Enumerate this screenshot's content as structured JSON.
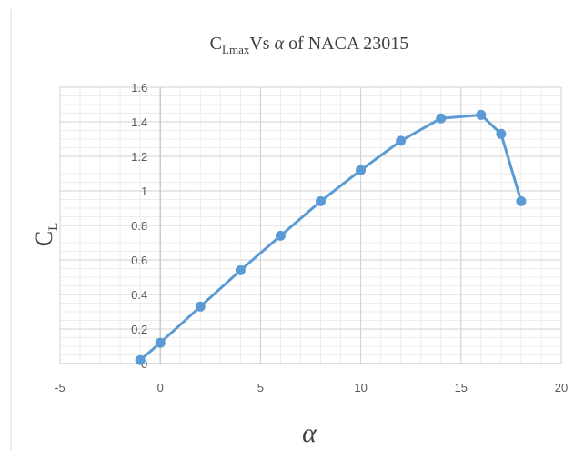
{
  "chart_data": {
    "type": "scatter",
    "mode": "lines+markers",
    "title": {
      "main": "C",
      "sub": "Lmax",
      "rest_prefix": "Vs ",
      "rest_symbol": "α",
      "rest_suffix": " of NACA 23015"
    },
    "xlabel": "α",
    "ylabel": {
      "main": "C",
      "sub": "L"
    },
    "xlim": [
      -5,
      20
    ],
    "ylim": [
      0,
      1.6
    ],
    "xticks": [
      -5,
      0,
      5,
      10,
      15,
      20
    ],
    "yticks": [
      0,
      0.2,
      0.4,
      0.6,
      0.8,
      1,
      1.2,
      1.4,
      1.6
    ],
    "x_minor_step": 1,
    "y_minor_step": 0.05,
    "grid": true,
    "legend": "none",
    "color": "#5b9bd5",
    "series": [
      {
        "x": [
          -1,
          0,
          2,
          4,
          6,
          8,
          10,
          12,
          14,
          16,
          17,
          18
        ],
        "y": [
          0.02,
          0.12,
          0.33,
          0.54,
          0.74,
          0.94,
          1.12,
          1.29,
          1.42,
          1.44,
          1.33,
          0.94
        ]
      }
    ]
  }
}
